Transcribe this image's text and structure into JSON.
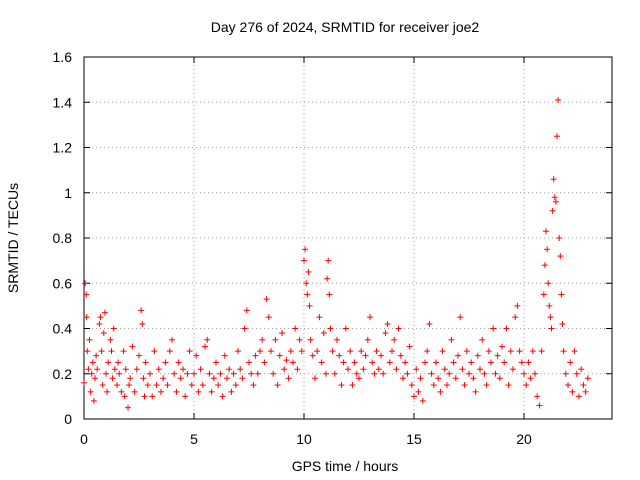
{
  "chart_data": {
    "type": "scatter",
    "title": "Day 276 of 2024, SRMTID for receiver joe2",
    "xlabel": "GPS time / hours",
    "ylabel": "SRMTID / TECUs",
    "xlim": [
      0,
      24
    ],
    "ylim": [
      0,
      1.6
    ],
    "xticks": [
      0,
      5,
      10,
      15,
      20
    ],
    "yticks": [
      0,
      0.2,
      0.4,
      0.6,
      0.8,
      1,
      1.2,
      1.4,
      1.6
    ],
    "xtick_labels": [
      "0",
      "5",
      "10",
      "15",
      "20"
    ],
    "ytick_labels": [
      "0",
      "0.2",
      "0.4",
      "0.6",
      "0.8",
      "1",
      "1.2",
      "1.4",
      "1.6"
    ],
    "grid": true,
    "marker": "+",
    "color": "#ff0000",
    "series": [
      {
        "name": "SRMTID",
        "points": [
          [
            0.0,
            0.16
          ],
          [
            0.05,
            0.6
          ],
          [
            0.1,
            0.55
          ],
          [
            0.12,
            0.45
          ],
          [
            0.15,
            0.3
          ],
          [
            0.2,
            0.22
          ],
          [
            0.25,
            0.35
          ],
          [
            0.3,
            0.12
          ],
          [
            0.35,
            0.2
          ],
          [
            0.4,
            0.25
          ],
          [
            0.45,
            0.08
          ],
          [
            0.5,
            0.18
          ],
          [
            0.55,
            0.28
          ],
          [
            0.6,
            0.22
          ],
          [
            0.7,
            0.42
          ],
          [
            0.75,
            0.45
          ],
          [
            0.8,
            0.3
          ],
          [
            0.85,
            0.15
          ],
          [
            0.9,
            0.38
          ],
          [
            0.95,
            0.47
          ],
          [
            1.0,
            0.2
          ],
          [
            1.05,
            0.12
          ],
          [
            1.1,
            0.25
          ],
          [
            1.2,
            0.35
          ],
          [
            1.25,
            0.3
          ],
          [
            1.3,
            0.18
          ],
          [
            1.35,
            0.4
          ],
          [
            1.4,
            0.22
          ],
          [
            1.5,
            0.15
          ],
          [
            1.55,
            0.25
          ],
          [
            1.6,
            0.2
          ],
          [
            1.7,
            0.12
          ],
          [
            1.8,
            0.3
          ],
          [
            1.85,
            0.1
          ],
          [
            1.9,
            0.22
          ],
          [
            2.0,
            0.05
          ],
          [
            2.05,
            0.15
          ],
          [
            2.1,
            0.18
          ],
          [
            2.2,
            0.32
          ],
          [
            2.3,
            0.12
          ],
          [
            2.4,
            0.22
          ],
          [
            2.5,
            0.28
          ],
          [
            2.6,
            0.48
          ],
          [
            2.65,
            0.42
          ],
          [
            2.7,
            0.18
          ],
          [
            2.75,
            0.1
          ],
          [
            2.8,
            0.25
          ],
          [
            2.9,
            0.15
          ],
          [
            3.0,
            0.2
          ],
          [
            3.1,
            0.1
          ],
          [
            3.2,
            0.3
          ],
          [
            3.3,
            0.15
          ],
          [
            3.4,
            0.22
          ],
          [
            3.5,
            0.12
          ],
          [
            3.6,
            0.18
          ],
          [
            3.7,
            0.25
          ],
          [
            3.8,
            0.15
          ],
          [
            3.9,
            0.3
          ],
          [
            4.0,
            0.35
          ],
          [
            4.1,
            0.2
          ],
          [
            4.2,
            0.12
          ],
          [
            4.3,
            0.25
          ],
          [
            4.4,
            0.18
          ],
          [
            4.5,
            0.22
          ],
          [
            4.6,
            0.1
          ],
          [
            4.7,
            0.2
          ],
          [
            4.8,
            0.3
          ],
          [
            4.9,
            0.15
          ],
          [
            5.0,
            0.2
          ],
          [
            5.1,
            0.28
          ],
          [
            5.2,
            0.12
          ],
          [
            5.3,
            0.22
          ],
          [
            5.4,
            0.15
          ],
          [
            5.5,
            0.32
          ],
          [
            5.6,
            0.35
          ],
          [
            5.7,
            0.2
          ],
          [
            5.8,
            0.12
          ],
          [
            5.9,
            0.18
          ],
          [
            6.0,
            0.25
          ],
          [
            6.1,
            0.15
          ],
          [
            6.2,
            0.2
          ],
          [
            6.3,
            0.1
          ],
          [
            6.4,
            0.28
          ],
          [
            6.5,
            0.18
          ],
          [
            6.6,
            0.22
          ],
          [
            6.7,
            0.12
          ],
          [
            6.8,
            0.2
          ],
          [
            6.9,
            0.15
          ],
          [
            7.0,
            0.3
          ],
          [
            7.1,
            0.22
          ],
          [
            7.2,
            0.18
          ],
          [
            7.3,
            0.4
          ],
          [
            7.4,
            0.48
          ],
          [
            7.5,
            0.25
          ],
          [
            7.6,
            0.2
          ],
          [
            7.7,
            0.15
          ],
          [
            7.8,
            0.28
          ],
          [
            7.9,
            0.2
          ],
          [
            8.0,
            0.3
          ],
          [
            8.1,
            0.35
          ],
          [
            8.2,
            0.25
          ],
          [
            8.3,
            0.53
          ],
          [
            8.4,
            0.45
          ],
          [
            8.5,
            0.3
          ],
          [
            8.6,
            0.2
          ],
          [
            8.7,
            0.35
          ],
          [
            8.8,
            0.15
          ],
          [
            8.9,
            0.28
          ],
          [
            9.0,
            0.38
          ],
          [
            9.1,
            0.22
          ],
          [
            9.2,
            0.26
          ],
          [
            9.3,
            0.18
          ],
          [
            9.4,
            0.3
          ],
          [
            9.5,
            0.25
          ],
          [
            9.6,
            0.4
          ],
          [
            9.7,
            0.22
          ],
          [
            9.8,
            0.35
          ],
          [
            9.9,
            0.3
          ],
          [
            10.0,
            0.7
          ],
          [
            10.05,
            0.75
          ],
          [
            10.1,
            0.6
          ],
          [
            10.15,
            0.55
          ],
          [
            10.2,
            0.65
          ],
          [
            10.25,
            0.5
          ],
          [
            10.3,
            0.35
          ],
          [
            10.4,
            0.28
          ],
          [
            10.5,
            0.18
          ],
          [
            10.6,
            0.3
          ],
          [
            10.7,
            0.45
          ],
          [
            10.8,
            0.25
          ],
          [
            10.9,
            0.38
          ],
          [
            11.0,
            0.2
          ],
          [
            11.05,
            0.62
          ],
          [
            11.1,
            0.7
          ],
          [
            11.15,
            0.55
          ],
          [
            11.2,
            0.4
          ],
          [
            11.3,
            0.3
          ],
          [
            11.4,
            0.2
          ],
          [
            11.5,
            0.35
          ],
          [
            11.6,
            0.28
          ],
          [
            11.7,
            0.15
          ],
          [
            11.8,
            0.25
          ],
          [
            11.9,
            0.4
          ],
          [
            12.0,
            0.22
          ],
          [
            12.1,
            0.3
          ],
          [
            12.2,
            0.15
          ],
          [
            12.3,
            0.25
          ],
          [
            12.4,
            0.2
          ],
          [
            12.5,
            0.18
          ],
          [
            12.6,
            0.3
          ],
          [
            12.7,
            0.22
          ],
          [
            12.8,
            0.28
          ],
          [
            12.9,
            0.35
          ],
          [
            13.0,
            0.45
          ],
          [
            13.1,
            0.25
          ],
          [
            13.2,
            0.2
          ],
          [
            13.3,
            0.3
          ],
          [
            13.4,
            0.22
          ],
          [
            13.5,
            0.28
          ],
          [
            13.6,
            0.2
          ],
          [
            13.7,
            0.38
          ],
          [
            13.8,
            0.42
          ],
          [
            13.9,
            0.25
          ],
          [
            14.0,
            0.3
          ],
          [
            14.1,
            0.35
          ],
          [
            14.2,
            0.22
          ],
          [
            14.3,
            0.4
          ],
          [
            14.4,
            0.28
          ],
          [
            14.5,
            0.18
          ],
          [
            14.6,
            0.25
          ],
          [
            14.7,
            0.2
          ],
          [
            14.8,
            0.32
          ],
          [
            14.9,
            0.15
          ],
          [
            15.0,
            0.1
          ],
          [
            15.1,
            0.22
          ],
          [
            15.2,
            0.12
          ],
          [
            15.3,
            0.18
          ],
          [
            15.4,
            0.08
          ],
          [
            15.5,
            0.25
          ],
          [
            15.6,
            0.3
          ],
          [
            15.7,
            0.42
          ],
          [
            15.8,
            0.2
          ],
          [
            15.9,
            0.15
          ],
          [
            16.0,
            0.25
          ],
          [
            16.1,
            0.18
          ],
          [
            16.2,
            0.12
          ],
          [
            16.3,
            0.3
          ],
          [
            16.4,
            0.22
          ],
          [
            16.5,
            0.15
          ],
          [
            16.6,
            0.2
          ],
          [
            16.7,
            0.35
          ],
          [
            16.8,
            0.25
          ],
          [
            16.9,
            0.18
          ],
          [
            17.0,
            0.28
          ],
          [
            17.1,
            0.45
          ],
          [
            17.2,
            0.22
          ],
          [
            17.3,
            0.15
          ],
          [
            17.4,
            0.3
          ],
          [
            17.5,
            0.2
          ],
          [
            17.6,
            0.25
          ],
          [
            17.7,
            0.18
          ],
          [
            17.8,
            0.12
          ],
          [
            17.9,
            0.28
          ],
          [
            18.0,
            0.22
          ],
          [
            18.1,
            0.35
          ],
          [
            18.2,
            0.2
          ],
          [
            18.3,
            0.15
          ],
          [
            18.4,
            0.3
          ],
          [
            18.5,
            0.25
          ],
          [
            18.6,
            0.4
          ],
          [
            18.7,
            0.2
          ],
          [
            18.8,
            0.28
          ],
          [
            18.9,
            0.18
          ],
          [
            19.0,
            0.32
          ],
          [
            19.1,
            0.25
          ],
          [
            19.2,
            0.4
          ],
          [
            19.3,
            0.15
          ],
          [
            19.4,
            0.3
          ],
          [
            19.5,
            0.22
          ],
          [
            19.6,
            0.45
          ],
          [
            19.7,
            0.5
          ],
          [
            19.8,
            0.3
          ],
          [
            19.9,
            0.25
          ],
          [
            20.0,
            0.2
          ],
          [
            20.1,
            0.15
          ],
          [
            20.2,
            0.25
          ],
          [
            20.3,
            0.18
          ],
          [
            20.4,
            0.3
          ],
          [
            20.5,
            0.2
          ],
          [
            20.6,
            0.1
          ],
          [
            20.7,
            0.06
          ],
          [
            20.8,
            0.3
          ],
          [
            20.9,
            0.55
          ],
          [
            20.95,
            0.68
          ],
          [
            21.0,
            0.83
          ],
          [
            21.05,
            0.75
          ],
          [
            21.1,
            0.6
          ],
          [
            21.15,
            0.5
          ],
          [
            21.2,
            0.45
          ],
          [
            21.25,
            0.4
          ],
          [
            21.3,
            0.92
          ],
          [
            21.35,
            1.06
          ],
          [
            21.4,
            0.98
          ],
          [
            21.45,
            0.96
          ],
          [
            21.5,
            1.25
          ],
          [
            21.55,
            1.41
          ],
          [
            21.6,
            0.8
          ],
          [
            21.65,
            0.72
          ],
          [
            21.7,
            0.55
          ],
          [
            21.75,
            0.42
          ],
          [
            21.8,
            0.3
          ],
          [
            21.9,
            0.2
          ],
          [
            22.0,
            0.15
          ],
          [
            22.1,
            0.25
          ],
          [
            22.2,
            0.12
          ],
          [
            22.3,
            0.3
          ],
          [
            22.4,
            0.2
          ],
          [
            22.5,
            0.1
          ],
          [
            22.6,
            0.22
          ],
          [
            22.7,
            0.15
          ],
          [
            22.8,
            0.12
          ],
          [
            22.9,
            0.18
          ]
        ]
      }
    ]
  }
}
